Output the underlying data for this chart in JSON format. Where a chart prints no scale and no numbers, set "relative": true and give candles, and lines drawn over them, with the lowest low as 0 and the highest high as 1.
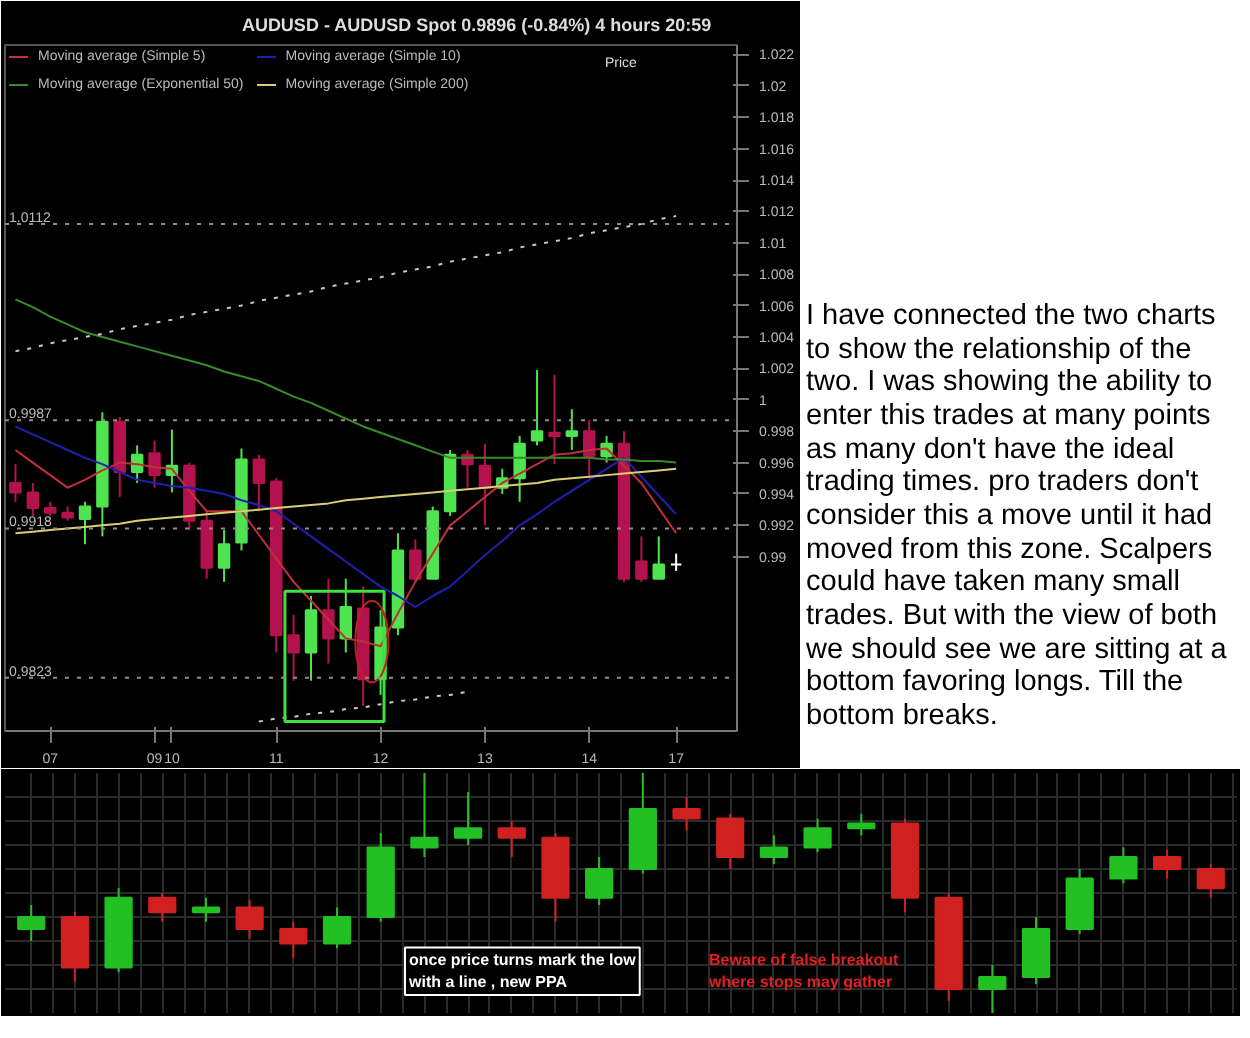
{
  "chart_data": [
    {
      "type": "candlestick",
      "title": "AUDUSD - AUDUSD Spot   0.9896 (-0.84%)   4 hours  20:59",
      "annotations": [
        "Price"
      ],
      "categories": [
        null,
        null,
        "07",
        null,
        null,
        null,
        null,
        null,
        "09",
        "10",
        null,
        null,
        null,
        null,
        null,
        "11",
        null,
        null,
        null,
        null,
        null,
        "12",
        null,
        null,
        null,
        null,
        null,
        "13",
        null,
        null,
        null,
        null,
        null,
        "14",
        null,
        null,
        null,
        null,
        "17"
      ],
      "ohlc": [
        [
          0.9947,
          0.9959,
          0.9935,
          0.9941
        ],
        [
          0.9941,
          0.9947,
          0.9926,
          0.9931
        ],
        [
          0.9931,
          0.9935,
          0.9926,
          0.9928
        ],
        [
          0.9928,
          0.9932,
          0.9923,
          0.9925
        ],
        [
          0.9924,
          0.9935,
          0.9908,
          0.9932
        ],
        [
          0.9932,
          0.9992,
          0.9913,
          0.9986
        ],
        [
          0.9986,
          0.9989,
          0.9938,
          0.9954
        ],
        [
          0.9954,
          0.9971,
          0.9947,
          0.9965
        ],
        [
          0.9966,
          0.9974,
          0.9944,
          0.9952
        ],
        [
          0.9952,
          0.9981,
          0.9941,
          0.9958
        ],
        [
          0.9958,
          0.996,
          0.9917,
          0.9923
        ],
        [
          0.9923,
          0.9929,
          0.9886,
          0.9893
        ],
        [
          0.9893,
          0.9917,
          0.9884,
          0.9908
        ],
        [
          0.9909,
          0.9969,
          0.9904,
          0.9962
        ],
        [
          0.9962,
          0.9965,
          0.9929,
          0.9947
        ],
        [
          0.9948,
          0.995,
          0.9839,
          0.985
        ],
        [
          0.985,
          0.9863,
          0.9821,
          0.9839
        ],
        [
          0.9839,
          0.9875,
          0.9821,
          0.9866
        ],
        [
          0.9866,
          0.9886,
          0.9832,
          0.9848
        ],
        [
          0.9848,
          0.9886,
          0.9839,
          0.9868
        ],
        [
          0.9867,
          0.9881,
          0.9805,
          0.9822
        ],
        [
          0.9822,
          0.9866,
          0.9812,
          0.9855
        ],
        [
          0.9855,
          0.9915,
          0.985,
          0.9904
        ],
        [
          0.9904,
          0.9911,
          0.9884,
          0.9886
        ],
        [
          0.9886,
          0.9932,
          0.9886,
          0.9929
        ],
        [
          0.9929,
          0.9968,
          0.9926,
          0.9965
        ],
        [
          0.9965,
          0.9968,
          0.9944,
          0.9959
        ],
        [
          0.9958,
          0.9972,
          0.992,
          0.9944
        ],
        [
          0.9944,
          0.9956,
          0.994,
          0.995
        ],
        [
          0.995,
          0.9977,
          0.9935,
          0.9972
        ],
        [
          0.9974,
          1.0019,
          0.9971,
          0.998
        ],
        [
          0.9979,
          1.0016,
          0.9959,
          0.9977
        ],
        [
          0.9977,
          0.9994,
          0.9968,
          0.998
        ],
        [
          0.998,
          0.9987,
          0.995,
          0.9964
        ],
        [
          0.9964,
          0.9977,
          0.996,
          0.9972
        ],
        [
          0.9972,
          0.998,
          0.9884,
          0.9886
        ],
        [
          0.9897,
          0.9913,
          0.9884,
          0.9886
        ],
        [
          0.9886,
          0.9913,
          0.9886,
          0.9895
        ],
        [
          0.9895,
          0.9902,
          0.9891,
          0.9895
        ]
      ],
      "colors": [
        "#b3124e",
        "#b3124e",
        "#b3124e",
        "#b3124e",
        "#4fe34f",
        "#4fe34f",
        "#b3124e",
        "#4fe34f",
        "#b3124e",
        "#4fe34f",
        "#b3124e",
        "#b3124e",
        "#4fe34f",
        "#4fe34f",
        "#b3124e",
        "#b3124e",
        "#b3124e",
        "#4fe34f",
        "#b3124e",
        "#4fe34f",
        "#b3124e",
        "#4fe34f",
        "#4fe34f",
        "#b3124e",
        "#4fe34f",
        "#4fe34f",
        "#b3124e",
        "#b3124e",
        "#4fe34f",
        "#4fe34f",
        "#4fe34f",
        "#b3124e",
        "#4fe34f",
        "#b3124e",
        "#4fe34f",
        "#b3124e",
        "#b3124e",
        "#4fe34f",
        "#ffffff"
      ],
      "series": [
        {
          "type": "line",
          "name": "Moving average (Simple 5)",
          "color": "#c0303a",
          "values": [
            0.9968,
            0.996,
            0.9952,
            0.9944,
            0.9949,
            0.9955,
            0.996,
            0.9959,
            0.9957,
            0.9956,
            0.9942,
            0.9929,
            0.9929,
            0.9929,
            0.9914,
            0.9899,
            0.9884,
            0.9872,
            0.986,
            0.9848,
            0.9846,
            0.9843,
            0.9864,
            0.9884,
            0.9902,
            0.992,
            0.9929,
            0.9938,
            0.9947,
            0.9953,
            0.9959,
            0.9965,
            0.9966,
            0.9968,
            0.9969,
            0.9958,
            0.9947,
            0.9931,
            0.9915
          ]
        },
        {
          "type": "line",
          "name": "Moving average (Simple 10)",
          "color": "#2020b0",
          "values": [
            0.9983,
            0.9978,
            0.9973,
            0.9968,
            0.9963,
            0.9959,
            0.9954,
            0.9949,
            0.9947,
            0.9945,
            0.9944,
            0.9942,
            0.994,
            0.9936,
            0.9933,
            0.9929,
            0.9921,
            0.9913,
            0.9905,
            0.9897,
            0.9889,
            0.9881,
            0.9875,
            0.9868,
            0.9875,
            0.9881,
            0.9891,
            0.9901,
            0.991,
            0.992,
            0.9927,
            0.9935,
            0.9942,
            0.9949,
            0.9956,
            0.9963,
            0.9951,
            0.9939,
            0.9927
          ]
        },
        {
          "type": "line",
          "name": "Moving average (Exponential 50)",
          "color": "#3a8a2a",
          "values": [
            1.0064,
            1.0059,
            1.0053,
            1.0048,
            1.0043,
            1.004,
            1.0037,
            1.0034,
            1.0031,
            1.0028,
            1.0025,
            1.0022,
            1.0018,
            1.0015,
            1.0012,
            1.0007,
            1.0002,
            0.9998,
            0.9993,
            0.9988,
            0.9983,
            0.9979,
            0.9975,
            0.9971,
            0.9967,
            0.9963,
            0.9963,
            0.9963,
            0.9963,
            0.9963,
            0.9963,
            0.9963,
            0.9963,
            0.9963,
            0.9962,
            0.9962,
            0.9961,
            0.9961,
            0.996
          ]
        },
        {
          "type": "line",
          "name": "Moving average (Simple 200)",
          "color": "#d8d070",
          "values": [
            0.9915,
            0.9916,
            0.9917,
            0.9918,
            0.9919,
            0.992,
            0.9921,
            0.9923,
            0.9924,
            0.9925,
            0.9926,
            0.9927,
            0.9928,
            0.9929,
            0.993,
            0.9931,
            0.9932,
            0.9933,
            0.9934,
            0.9936,
            0.9937,
            0.9938,
            0.9939,
            0.994,
            0.9941,
            0.9942,
            0.9943,
            0.9944,
            0.9945,
            0.9946,
            0.9947,
            0.9949,
            0.995,
            0.9951,
            0.9952,
            0.9953,
            0.9954,
            0.9955,
            0.9956
          ]
        },
        {
          "type": "line",
          "color": "#c8c8c8",
          "line_style": "dotted",
          "values": [
            1.0031,
            1.0033,
            1.0036,
            1.0038,
            1.004,
            1.0042,
            1.0045,
            1.0047,
            1.0049,
            1.0051,
            1.0054,
            1.0056,
            1.0058,
            1.006,
            1.0063,
            1.0065,
            1.0067,
            1.0069,
            1.0072,
            1.0074,
            1.0076,
            1.0078,
            1.0081,
            1.0083,
            1.0085,
            1.0088,
            1.009,
            1.0092,
            1.0094,
            1.0097,
            1.0099,
            1.0101,
            1.0103,
            1.0106,
            1.0108,
            1.011,
            1.0112,
            1.0115,
            1.0117
          ]
        },
        {
          "type": "line",
          "color": "#c8c8c8",
          "line_style": "dotted",
          "values": [
            null,
            null,
            null,
            null,
            null,
            null,
            null,
            null,
            null,
            null,
            null,
            null,
            null,
            null,
            0.9795,
            0.9797,
            0.9798,
            0.98,
            0.9801,
            0.9803,
            0.9804,
            0.9806,
            0.9808,
            0.9809,
            0.9811,
            0.9812,
            0.9814,
            null,
            null,
            null,
            null,
            null,
            null,
            null,
            null,
            null,
            null,
            null,
            null
          ]
        }
      ],
      "ref_lines": [
        {
          "axis": "y",
          "value": 1.0112,
          "label": "1.0112",
          "color": "#9a8a8a",
          "line_style": "dotted"
        },
        {
          "axis": "y",
          "value": 0.9987,
          "label": "0.9987",
          "color": "#9a8a8a",
          "line_style": "dotted"
        },
        {
          "axis": "y",
          "value": 0.9918,
          "label": "0.9918",
          "color": "#9a8a8a",
          "line_style": "dotted"
        },
        {
          "axis": "y",
          "value": 0.9823,
          "label": "0.9823",
          "color": "#9a8a8a",
          "line_style": "dotted"
        }
      ],
      "ylim": [
        0.9789,
        1.0226
      ],
      "yticks": [
        0.99,
        0.992,
        0.994,
        0.996,
        0.998,
        1,
        1.002,
        1.004,
        1.006,
        1.008,
        1.01,
        1.012,
        1.014,
        1.016,
        1.018,
        1.02,
        1.022
      ],
      "legend": "top left",
      "grid": false
    },
    {
      "type": "other",
      "annotations": [
        "I have connected the two charts to show the relationship of the two. I was showing the ability to enter this trades at many points as many don't have the ideal trading times. pro traders don't consider this a move until it had moved from this zone. Scalpers could have taken many small trades. But with the view of both we should see we are sitting at a bottom favoring longs. Till the bottom breaks."
      ]
    },
    {
      "type": "candlestick",
      "relative": true,
      "grid": true,
      "categories": [
        null,
        null,
        null,
        null,
        null,
        null,
        null,
        null,
        null,
        null,
        null,
        null,
        null,
        null,
        null,
        null,
        null,
        null,
        null,
        null,
        null,
        null,
        null,
        null,
        null,
        null,
        null,
        null
      ],
      "ohlc": [
        [
          0.35,
          0.45,
          0.3,
          0.4
        ],
        [
          0.4,
          0.42,
          0.13,
          0.19
        ],
        [
          0.19,
          0.52,
          0.17,
          0.48
        ],
        [
          0.48,
          0.5,
          0.38,
          0.42
        ],
        [
          0.42,
          0.48,
          0.38,
          0.44
        ],
        [
          0.44,
          0.47,
          0.31,
          0.35
        ],
        [
          0.35,
          0.38,
          0.23,
          0.29
        ],
        [
          0.29,
          0.44,
          0.27,
          0.4
        ],
        [
          0.4,
          0.75,
          0.38,
          0.69
        ],
        [
          0.69,
          1.0,
          0.65,
          0.73
        ],
        [
          0.73,
          0.92,
          0.7,
          0.77
        ],
        [
          0.77,
          0.8,
          0.65,
          0.73
        ],
        [
          0.73,
          0.75,
          0.38,
          0.48
        ],
        [
          0.48,
          0.65,
          0.45,
          0.6
        ],
        [
          0.6,
          1.0,
          0.58,
          0.85
        ],
        [
          0.85,
          0.9,
          0.76,
          0.81
        ],
        [
          0.81,
          0.83,
          0.6,
          0.65
        ],
        [
          0.65,
          0.74,
          0.62,
          0.69
        ],
        [
          0.69,
          0.81,
          0.67,
          0.77
        ],
        [
          0.77,
          0.83,
          0.74,
          0.79
        ],
        [
          0.79,
          0.81,
          0.42,
          0.48
        ],
        [
          0.48,
          0.5,
          0.05,
          0.1
        ],
        [
          0.1,
          0.2,
          0.0,
          0.15
        ],
        [
          0.15,
          0.4,
          0.12,
          0.35
        ],
        [
          0.35,
          0.6,
          0.33,
          0.56
        ],
        [
          0.56,
          0.69,
          0.54,
          0.65
        ],
        [
          0.65,
          0.68,
          0.56,
          0.6
        ],
        [
          0.6,
          0.62,
          0.48,
          0.52
        ]
      ],
      "colors": [
        "#22c022",
        "#d02020",
        "#22c022",
        "#d02020",
        "#22c022",
        "#d02020",
        "#d02020",
        "#22c022",
        "#22c022",
        "#22c022",
        "#22c022",
        "#d02020",
        "#d02020",
        "#22c022",
        "#22c022",
        "#d02020",
        "#d02020",
        "#22c022",
        "#22c022",
        "#22c022",
        "#d02020",
        "#d02020",
        "#22c022",
        "#22c022",
        "#22c022",
        "#22c022",
        "#d02020",
        "#d02020"
      ],
      "annotations": [
        "once price turns mark the low\nwith a line , new PPA",
        "Beware of false breakout\nwhere stops may gather"
      ]
    }
  ]
}
